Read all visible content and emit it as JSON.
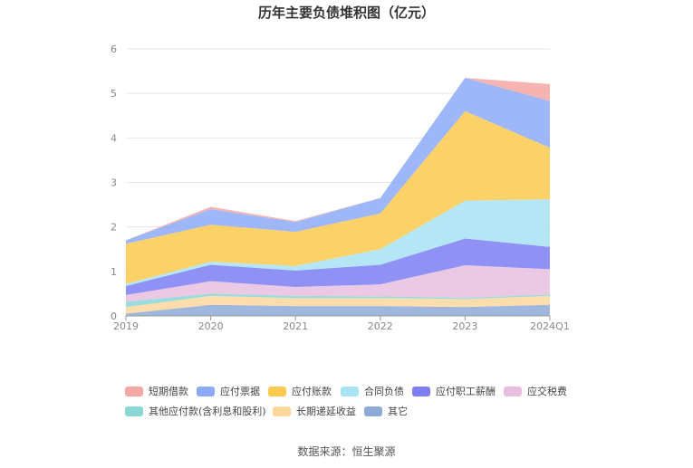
{
  "chart_data": {
    "type": "area",
    "stacked": true,
    "title": "历年主要负债堆积图（亿元）",
    "x": [
      "2019",
      "2020",
      "2021",
      "2022",
      "2023",
      "2024Q1"
    ],
    "ylim": [
      0,
      6
    ],
    "yticks": [
      0,
      1,
      2,
      3,
      4,
      5,
      6
    ],
    "grid": true,
    "legend_position": "bottom",
    "series": [
      {
        "name": "其它",
        "color": "#8eaad8",
        "values": [
          0.05,
          0.25,
          0.22,
          0.22,
          0.2,
          0.25
        ]
      },
      {
        "name": "长期递延收益",
        "color": "#fbd79c",
        "values": [
          0.15,
          0.2,
          0.18,
          0.18,
          0.18,
          0.2
        ]
      },
      {
        "name": "其他应付款(含利息和股利)",
        "color": "#89d6d6",
        "values": [
          0.12,
          0.05,
          0.05,
          0.04,
          0.03,
          0.03
        ]
      },
      {
        "name": "应交税费",
        "color": "#e8bedf",
        "values": [
          0.15,
          0.28,
          0.2,
          0.27,
          0.73,
          0.57
        ]
      },
      {
        "name": "应付职工薪酬",
        "color": "#7d7ef2",
        "values": [
          0.2,
          0.37,
          0.37,
          0.44,
          0.6,
          0.5
        ]
      },
      {
        "name": "合同负债",
        "color": "#a8e2f5",
        "values": [
          0.05,
          0.07,
          0.1,
          0.35,
          0.85,
          1.07
        ]
      },
      {
        "name": "应付账款",
        "color": "#fbc94e",
        "values": [
          0.9,
          0.83,
          0.77,
          0.8,
          2.01,
          1.16
        ]
      },
      {
        "name": "应付票据",
        "color": "#8caaf8",
        "values": [
          0.08,
          0.35,
          0.22,
          0.35,
          0.75,
          1.05
        ]
      },
      {
        "name": "短期借款",
        "color": "#f4a7a3",
        "values": [
          0.0,
          0.05,
          0.02,
          0.0,
          0.0,
          0.38
        ]
      }
    ]
  },
  "legend": {
    "items": [
      {
        "label": "短期借款",
        "color": "#f4a7a3"
      },
      {
        "label": "应付票据",
        "color": "#8caaf8"
      },
      {
        "label": "应付账款",
        "color": "#fbc94e"
      },
      {
        "label": "合同负债",
        "color": "#a8e2f5"
      },
      {
        "label": "应付职工薪酬",
        "color": "#7d7ef2"
      },
      {
        "label": "应交税费",
        "color": "#e8bedf"
      },
      {
        "label": "其他应付款(含利息和股利)",
        "color": "#89d6d6"
      },
      {
        "label": "长期递延收益",
        "color": "#fbd79c"
      },
      {
        "label": "其它",
        "color": "#8eaad8"
      }
    ]
  },
  "source": "数据来源：恒生聚源"
}
